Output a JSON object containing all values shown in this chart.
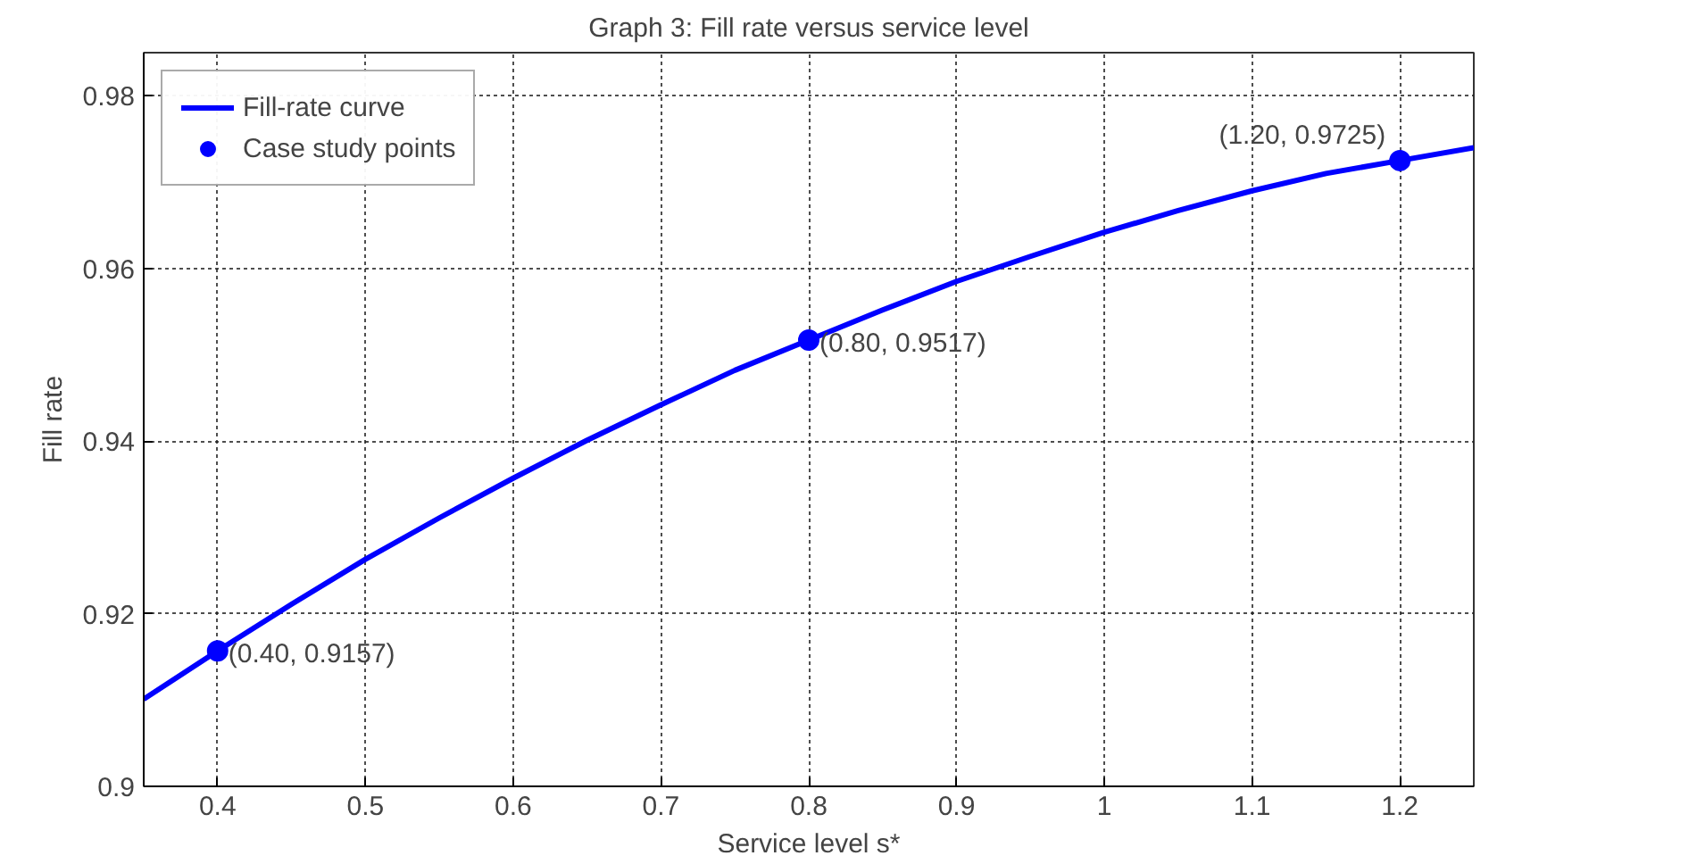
{
  "chart_data": {
    "type": "line",
    "title": "Graph 3: Fill rate versus service level",
    "xlabel": "Service level s*",
    "ylabel": "Fill rate",
    "xlim": [
      0.35,
      1.25
    ],
    "xticks": [
      0.4,
      0.5,
      0.6,
      0.7,
      0.8,
      0.9,
      1,
      1.1,
      1.2
    ],
    "ylim": [
      0.9,
      0.985
    ],
    "yticks": [
      0.9,
      0.92,
      0.94,
      0.96,
      0.98
    ],
    "grid": true,
    "legend": "top left",
    "series": [
      {
        "name": "Fill-rate curve",
        "type": "line",
        "color": "#0000ff",
        "marker": "none",
        "line_style": "solid",
        "x": [
          0.35,
          0.4,
          0.45,
          0.5,
          0.55,
          0.6,
          0.65,
          0.7,
          0.75,
          0.8,
          0.85,
          0.9,
          0.95,
          1.0,
          1.05,
          1.1,
          1.15,
          1.2,
          1.25
        ],
        "values": [
          0.9101,
          0.9157,
          0.9211,
          0.9263,
          0.9311,
          0.9357,
          0.9401,
          0.9442,
          0.9482,
          0.9517,
          0.9552,
          0.9585,
          0.9614,
          0.9642,
          0.9667,
          0.969,
          0.971,
          0.9725,
          0.974
        ]
      },
      {
        "name": "Case study points",
        "type": "scatter",
        "color": "#0000ff",
        "marker": "circle",
        "x": [
          0.4,
          0.8,
          1.2
        ],
        "values": [
          0.9157,
          0.9517,
          0.9725
        ]
      }
    ],
    "annotations": [
      {
        "text": "(0.40, 0.9157)",
        "x": 0.4,
        "y": 0.9157
      },
      {
        "text": "(0.80, 0.9517)",
        "x": 0.8,
        "y": 0.9517
      },
      {
        "text": "(1.20, 0.9725)",
        "x": 1.2,
        "y": 0.9725
      }
    ]
  }
}
